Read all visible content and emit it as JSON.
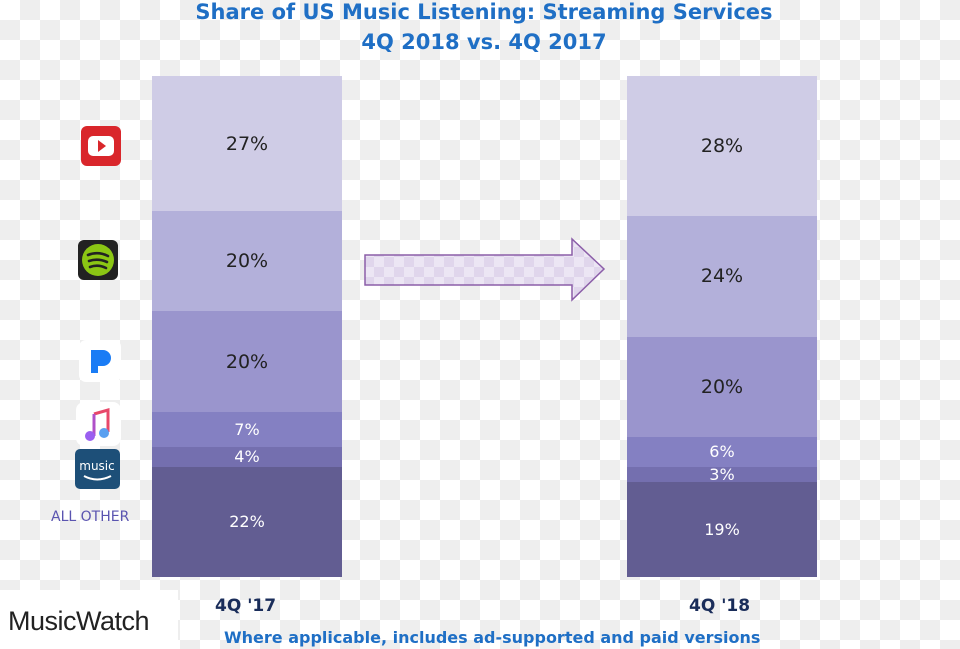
{
  "chart_data": {
    "type": "bar",
    "stacked": true,
    "percent": true,
    "title": "Share of US Music Listening: Streaming Services",
    "subtitle": "4Q 2018 vs. 4Q 2017",
    "categories": [
      "4Q '17",
      "4Q '18"
    ],
    "series": [
      {
        "name": "YouTube",
        "icon": "youtube-icon",
        "color": "#cfcce6",
        "values": [
          27,
          28
        ]
      },
      {
        "name": "Spotify",
        "icon": "spotify-icon",
        "color": "#b3b0da",
        "values": [
          20,
          24
        ]
      },
      {
        "name": "Pandora",
        "icon": "pandora-icon",
        "color": "#9a95cd",
        "values": [
          20,
          20
        ]
      },
      {
        "name": "Apple Music",
        "icon": "apple-music-icon",
        "color": "#8480c2",
        "values": [
          7,
          6
        ]
      },
      {
        "name": "Amazon Music",
        "icon": "amazon-music-icon",
        "color": "#746faf",
        "values": [
          4,
          3
        ]
      },
      {
        "name": "ALL OTHER",
        "color": "#625d92",
        "values": [
          22,
          19
        ]
      }
    ],
    "footnote": "Where applicable, includes ad-supported and paid versions",
    "ylim": [
      0,
      100
    ],
    "grid": false
  },
  "logo": "MusicWatch",
  "legend_other": "ALL OTHER"
}
